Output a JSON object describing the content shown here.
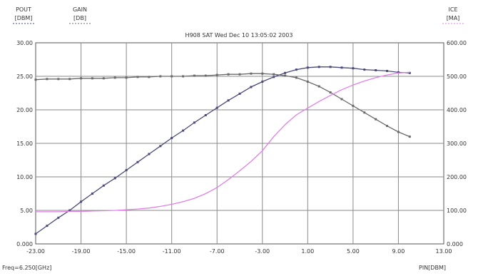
{
  "chart_data": {
    "type": "line",
    "title": "H908 SAT Wed Dec 10 13:05:02 2003",
    "x_axis": {
      "label": "PIN[DBM]",
      "range": [
        -23,
        13
      ],
      "ticks": [
        "-23.00",
        "-19.00",
        "-15.00",
        "-11.00",
        "-7.00",
        "-3.00",
        "1.00",
        "5.00",
        "9.00",
        "13.00"
      ]
    },
    "y_left": {
      "range": [
        0,
        30
      ],
      "ticks": [
        "0.000",
        "5.00",
        "10.00",
        "15.00",
        "20.00",
        "25.00",
        "30.00"
      ]
    },
    "y_right": {
      "range": [
        0,
        600
      ],
      "ticks": [
        "0.000",
        "100.00",
        "200.00",
        "300.00",
        "400.00",
        "500.00",
        "600.00"
      ]
    },
    "header_labels": {
      "pout": "POUT",
      "pout_unit": "[DBM]",
      "gain": "GAIN",
      "gain_unit": "[DB]",
      "ice": "ICE",
      "ice_unit": "[MA]"
    },
    "footer": "Freq=6.250[GHz]",
    "grid": true,
    "series": [
      {
        "name": "POUT",
        "axis": "left",
        "color": "#4a4a7a",
        "x": [
          -23,
          -22,
          -21,
          -20,
          -19,
          -18,
          -17,
          -16,
          -15,
          -14,
          -13,
          -12,
          -11,
          -10,
          -9,
          -8,
          -7,
          -6,
          -5,
          -4,
          -3,
          -2,
          -1,
          0,
          1,
          2,
          3,
          4,
          5,
          6,
          7,
          8,
          9,
          10
        ],
        "values": [
          1.5,
          2.7,
          3.9,
          5.0,
          6.3,
          7.5,
          8.7,
          9.8,
          11.0,
          12.2,
          13.4,
          14.6,
          15.8,
          16.9,
          18.1,
          19.2,
          20.3,
          21.4,
          22.4,
          23.4,
          24.2,
          24.9,
          25.5,
          26.0,
          26.3,
          26.4,
          26.4,
          26.3,
          26.2,
          26.0,
          25.9,
          25.8,
          25.6,
          25.5
        ]
      },
      {
        "name": "GAIN",
        "axis": "left",
        "color": "#6a6a6a",
        "x": [
          -23,
          -22,
          -21,
          -20,
          -19,
          -18,
          -17,
          -16,
          -15,
          -14,
          -13,
          -12,
          -11,
          -10,
          -9,
          -8,
          -7,
          -6,
          -5,
          -4,
          -3,
          -2,
          -1,
          0,
          1,
          2,
          3,
          4,
          5,
          6,
          7,
          8,
          9,
          10
        ],
        "values": [
          24.5,
          24.6,
          24.6,
          24.6,
          24.7,
          24.7,
          24.7,
          24.8,
          24.8,
          24.9,
          24.9,
          25.0,
          25.0,
          25.0,
          25.1,
          25.1,
          25.2,
          25.3,
          25.3,
          25.4,
          25.4,
          25.3,
          25.1,
          24.8,
          24.2,
          23.5,
          22.6,
          21.6,
          20.6,
          19.6,
          18.6,
          17.6,
          16.7,
          16.0
        ]
      },
      {
        "name": "ICE",
        "axis": "right",
        "color": "#e080e8",
        "x": [
          -23,
          -22,
          -21,
          -20,
          -19,
          -18,
          -17,
          -16,
          -15,
          -14,
          -13,
          -12,
          -11,
          -10,
          -9,
          -8,
          -7,
          -6,
          -5,
          -4,
          -3,
          -2,
          -1,
          0,
          1,
          2,
          3,
          4,
          5,
          6,
          7,
          8,
          9,
          10
        ],
        "values": [
          96,
          96,
          96,
          97,
          97,
          98,
          99,
          100,
          102,
          104,
          107,
          112,
          118,
          126,
          136,
          150,
          168,
          192,
          218,
          246,
          278,
          320,
          356,
          385,
          405,
          425,
          443,
          460,
          474,
          486,
          496,
          504,
          510,
          512
        ]
      }
    ]
  }
}
